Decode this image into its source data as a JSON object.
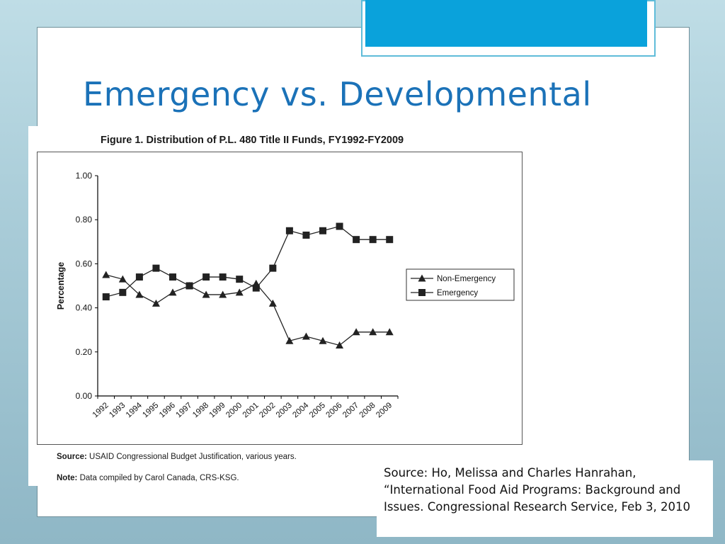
{
  "slide": {
    "title": "Emergency vs. Developmental",
    "source_text": "Source:  Ho, Melissa and Charles Hanrahan, “International Food Aid Programs:  Background and Issues.  Congressional Research Service, Feb 3, 2010"
  },
  "figure": {
    "title": "Figure 1. Distribution of P.L. 480 Title II Funds, FY1992-FY2009",
    "source_label": "Source:",
    "source_value": "USAID Congressional Budget Justification, various years.",
    "note_label": "Note:",
    "note_value": "Data compiled by Carol Canada, CRS-KSG."
  },
  "colors": {
    "title": "#1b72b8",
    "accent": "#0aa2db",
    "series_line": "#222222"
  },
  "chart_data": {
    "type": "line",
    "title": "Figure 1. Distribution of P.L. 480 Title II Funds, FY1992-FY2009",
    "xlabel": "",
    "ylabel": "Percentage",
    "categories": [
      "1992",
      "1993",
      "1994",
      "1995",
      "1996",
      "1997",
      "1998",
      "1999",
      "2000",
      "2001",
      "2002",
      "2003",
      "2004",
      "2005",
      "2006",
      "2007",
      "2008",
      "2009"
    ],
    "ylim": [
      0,
      1
    ],
    "yticks": [
      "0.00",
      "0.20",
      "0.40",
      "0.60",
      "0.80",
      "1.00"
    ],
    "grid": false,
    "legend_position": "right",
    "series": [
      {
        "name": "Non-Emergency",
        "marker": "triangle",
        "values": [
          0.55,
          0.53,
          0.46,
          0.42,
          0.47,
          0.5,
          0.46,
          0.46,
          0.47,
          0.51,
          0.42,
          0.25,
          0.27,
          0.25,
          0.23,
          0.29,
          0.29,
          0.29
        ]
      },
      {
        "name": "Emergency",
        "marker": "square",
        "values": [
          0.45,
          0.47,
          0.54,
          0.58,
          0.54,
          0.5,
          0.54,
          0.54,
          0.53,
          0.49,
          0.58,
          0.75,
          0.73,
          0.75,
          0.77,
          0.71,
          0.71,
          0.71
        ]
      }
    ]
  }
}
